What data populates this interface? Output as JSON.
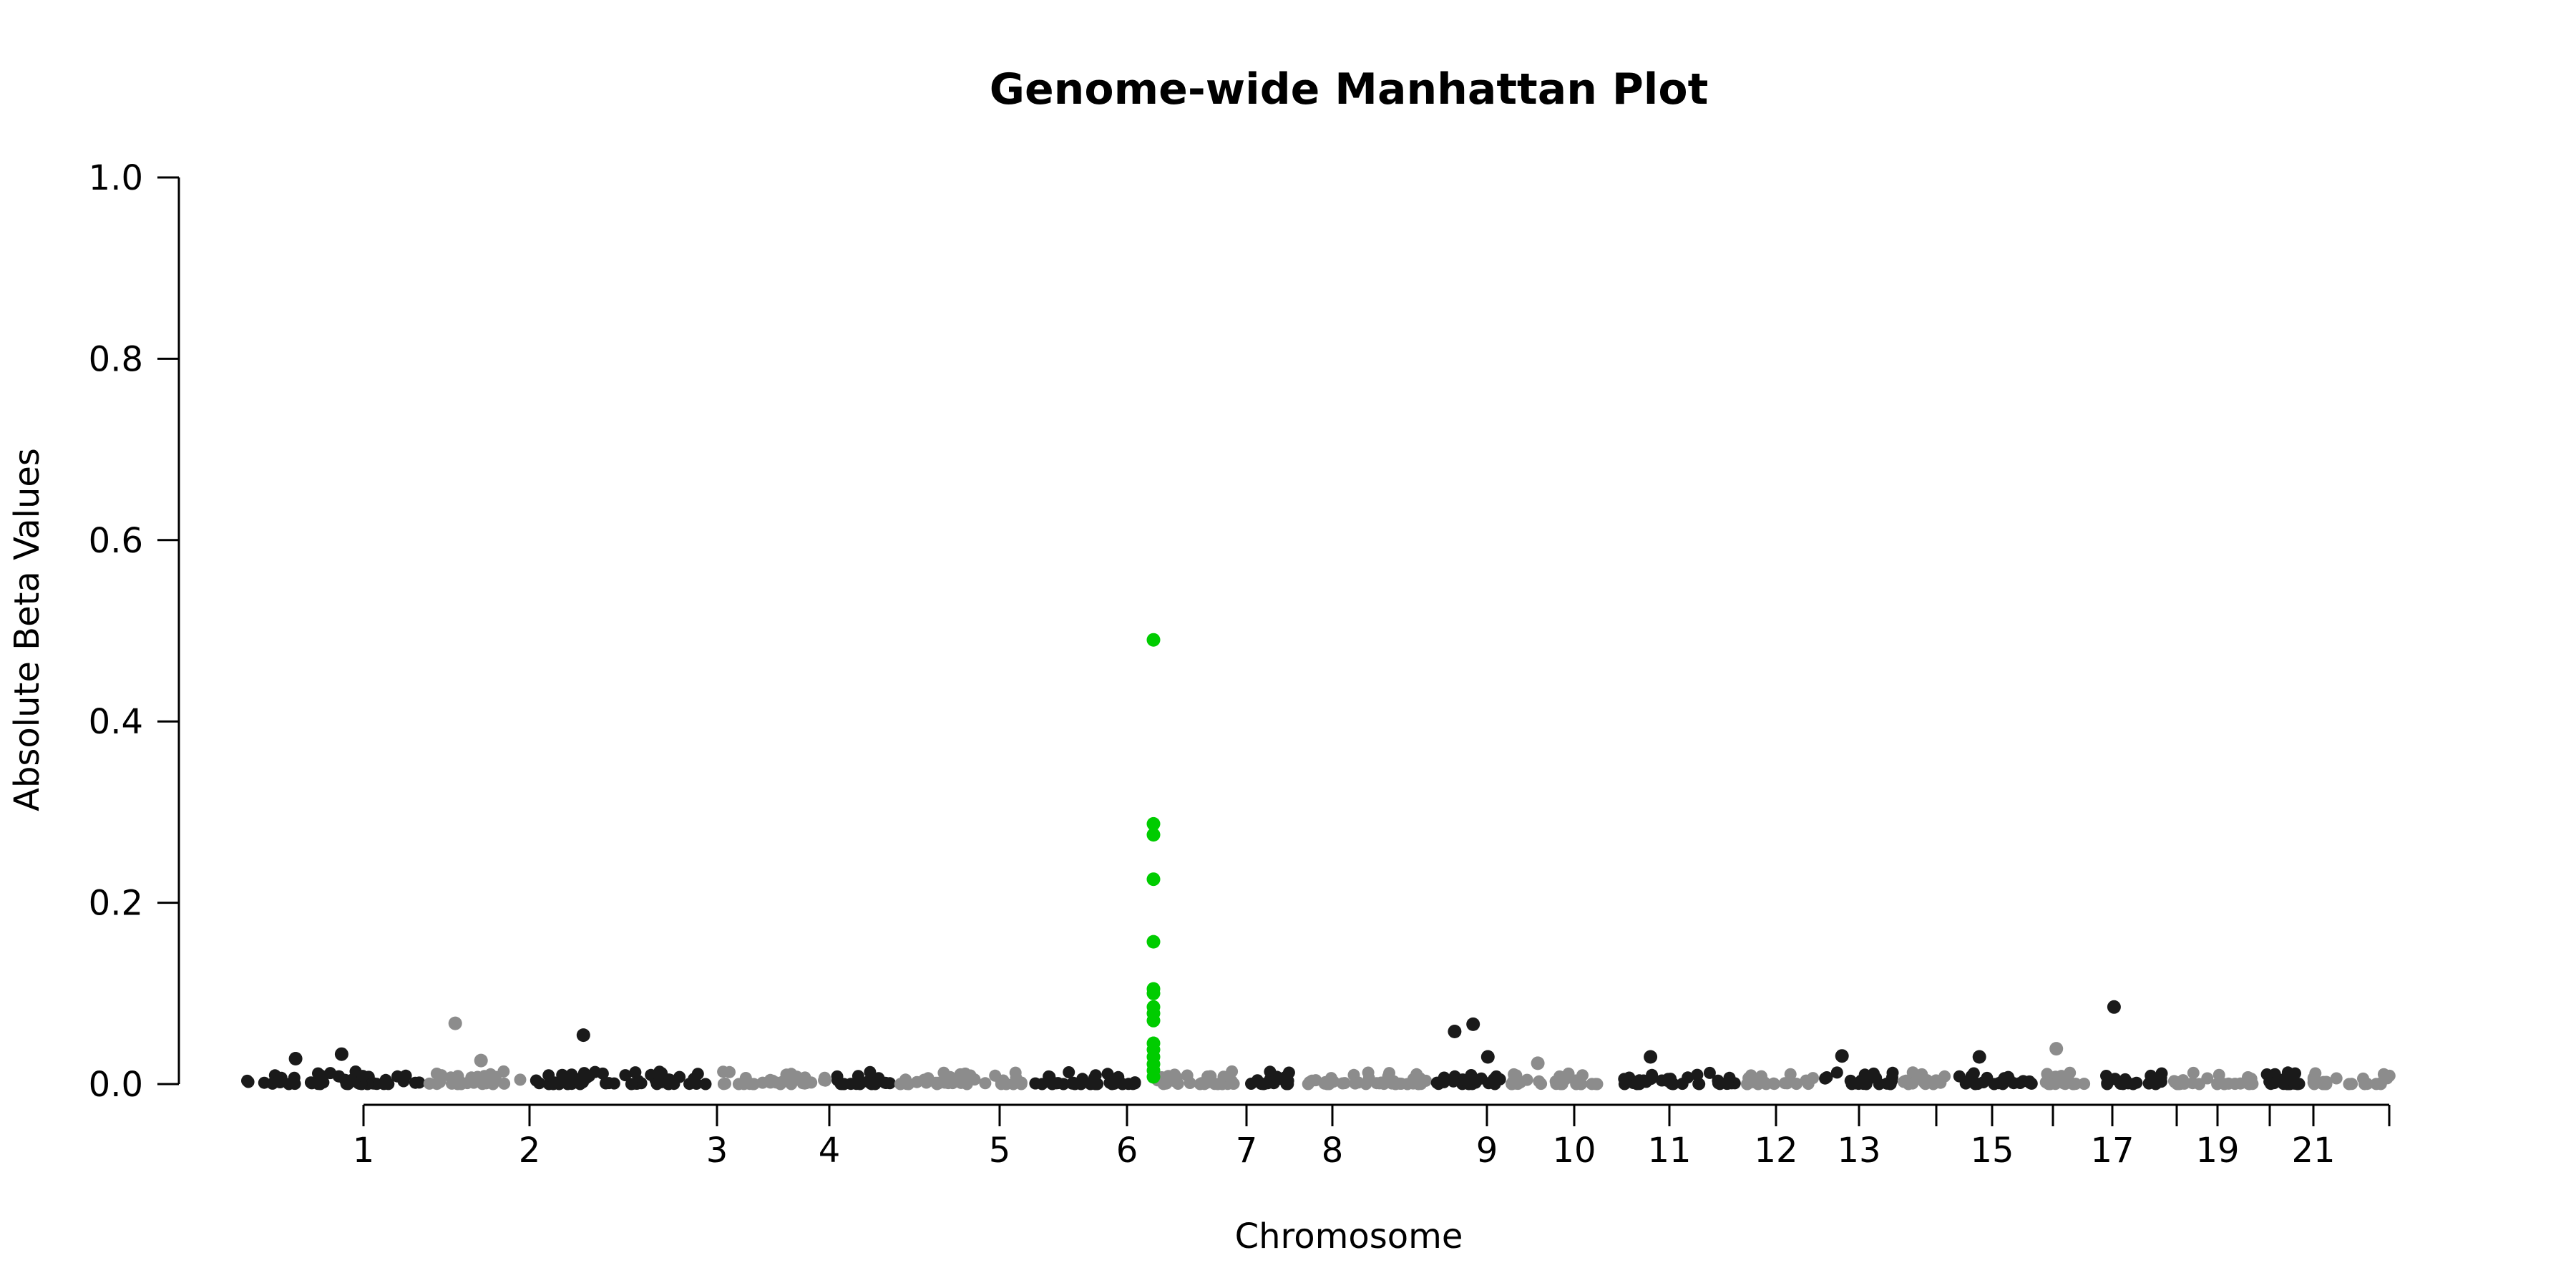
{
  "chart_data": {
    "type": "scatter",
    "title": "Genome-wide Manhattan Plot",
    "xlabel": "Chromosome",
    "ylabel": "Absolute Beta Values",
    "ylim": [
      0,
      1.0
    ],
    "yticks": [
      "0.0",
      "0.2",
      "0.4",
      "0.6",
      "0.8",
      "1.0"
    ],
    "grid": false,
    "legend": "none",
    "colors": {
      "odd_chromosome": "#1a1a1a",
      "even_chromosome": "#8c8c8c",
      "highlight": "#00cc00"
    },
    "chromosomes": [
      {
        "chr": "1",
        "tick_label": "1"
      },
      {
        "chr": "2",
        "tick_label": "2"
      },
      {
        "chr": "3",
        "tick_label": "3"
      },
      {
        "chr": "4",
        "tick_label": "4"
      },
      {
        "chr": "5",
        "tick_label": "5"
      },
      {
        "chr": "6",
        "tick_label": "6"
      },
      {
        "chr": "7",
        "tick_label": "7"
      },
      {
        "chr": "8",
        "tick_label": "8"
      },
      {
        "chr": "9",
        "tick_label": "9"
      },
      {
        "chr": "10",
        "tick_label": "10"
      },
      {
        "chr": "11",
        "tick_label": "11"
      },
      {
        "chr": "12",
        "tick_label": "12"
      },
      {
        "chr": "13",
        "tick_label": "13"
      },
      {
        "chr": "14",
        "tick_label": ""
      },
      {
        "chr": "15",
        "tick_label": "15"
      },
      {
        "chr": "16",
        "tick_label": ""
      },
      {
        "chr": "17",
        "tick_label": "17"
      },
      {
        "chr": "18",
        "tick_label": ""
      },
      {
        "chr": "19",
        "tick_label": "19"
      },
      {
        "chr": "20",
        "tick_label": ""
      },
      {
        "chr": "21",
        "tick_label": "21"
      },
      {
        "chr": "22",
        "tick_label": ""
      }
    ],
    "notable_points": [
      {
        "chr": "1",
        "y": 0.028
      },
      {
        "chr": "1",
        "y": 0.033
      },
      {
        "chr": "2",
        "y": 0.067
      },
      {
        "chr": "2",
        "y": 0.026
      },
      {
        "chr": "3",
        "y": 0.054
      },
      {
        "chr": "6",
        "y": 0.49,
        "highlight": true
      },
      {
        "chr": "6",
        "y": 0.287,
        "highlight": true
      },
      {
        "chr": "6",
        "y": 0.275,
        "highlight": true
      },
      {
        "chr": "6",
        "y": 0.226,
        "highlight": true
      },
      {
        "chr": "6",
        "y": 0.157,
        "highlight": true
      },
      {
        "chr": "6",
        "y": 0.105,
        "highlight": true
      },
      {
        "chr": "6",
        "y": 0.1,
        "highlight": true
      },
      {
        "chr": "6",
        "y": 0.085,
        "highlight": true
      },
      {
        "chr": "6",
        "y": 0.078,
        "highlight": true
      },
      {
        "chr": "6",
        "y": 0.07,
        "highlight": true
      },
      {
        "chr": "6",
        "y": 0.045,
        "highlight": true
      },
      {
        "chr": "6",
        "y": 0.038,
        "highlight": true
      },
      {
        "chr": "6",
        "y": 0.03,
        "highlight": true
      },
      {
        "chr": "6",
        "y": 0.022,
        "highlight": true
      },
      {
        "chr": "6",
        "y": 0.015,
        "highlight": true
      },
      {
        "chr": "6",
        "y": 0.008,
        "highlight": true
      },
      {
        "chr": "11",
        "y": 0.058
      },
      {
        "chr": "11",
        "y": 0.066
      },
      {
        "chr": "11",
        "y": 0.03
      },
      {
        "chr": "12",
        "y": 0.023
      },
      {
        "chr": "13",
        "y": 0.03
      },
      {
        "chr": "15",
        "y": 0.031
      },
      {
        "chr": "17",
        "y": 0.03
      },
      {
        "chr": "18",
        "y": 0.039
      },
      {
        "chr": "19",
        "y": 0.085
      }
    ]
  }
}
